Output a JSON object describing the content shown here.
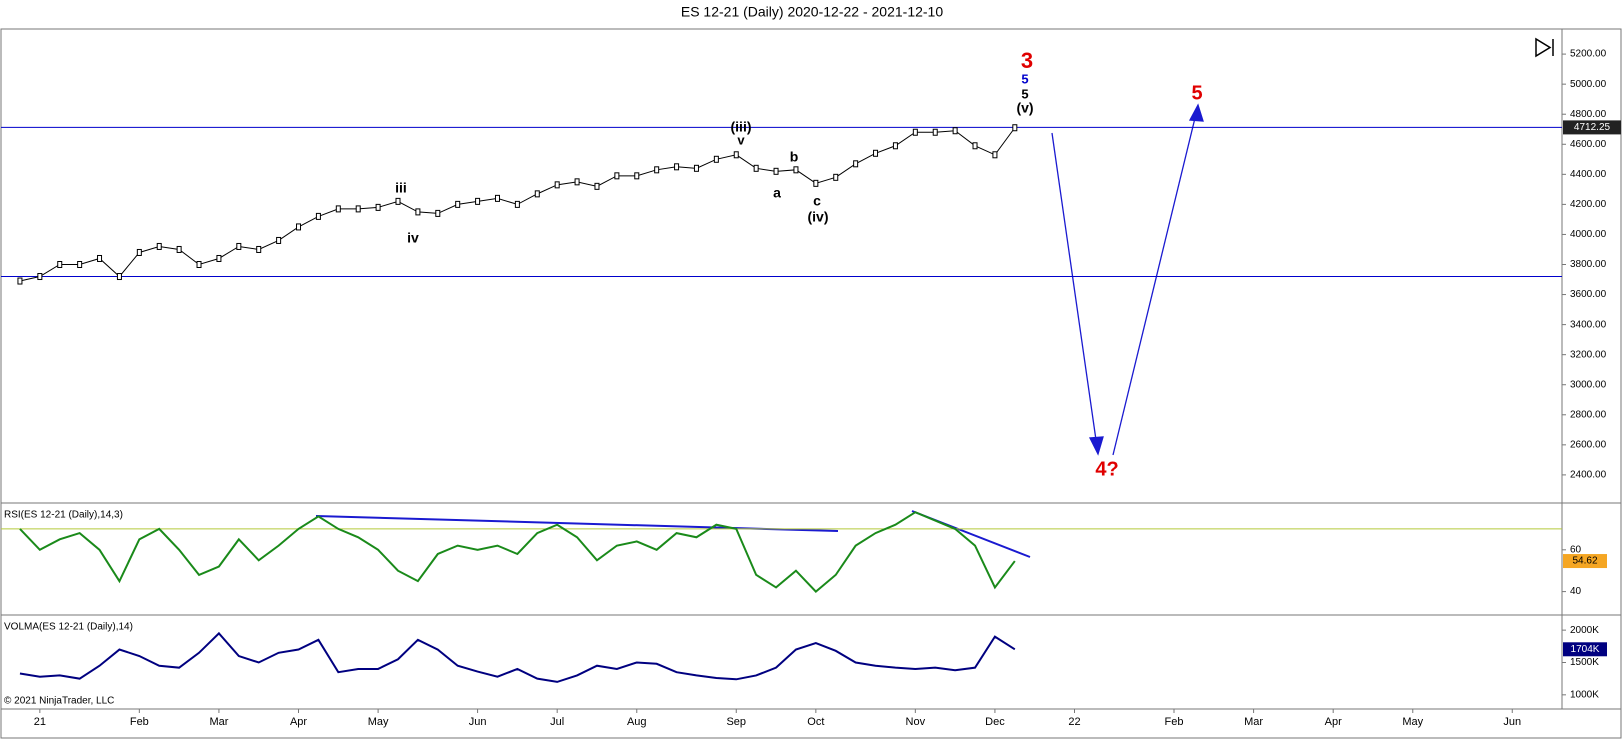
{
  "chart_data": [
    {
      "type": "line",
      "title": "ES 12-21 (Daily)  2020-12-22 - 2021-12-10",
      "categories": [
        null,
        "21",
        null,
        null,
        null,
        null,
        "Feb",
        null,
        null,
        null,
        "Mar",
        null,
        null,
        null,
        "Apr",
        null,
        null,
        null,
        "May",
        null,
        null,
        null,
        null,
        "Jun",
        null,
        null,
        null,
        "Jul",
        null,
        null,
        null,
        "Aug",
        null,
        null,
        null,
        null,
        "Sep",
        null,
        null,
        null,
        "Oct",
        null,
        null,
        null,
        null,
        "Nov",
        null,
        null,
        null,
        "Dec",
        null,
        null,
        null,
        "22",
        null,
        null,
        null,
        null,
        "Feb",
        null,
        null,
        null,
        "Mar",
        null,
        null,
        null,
        "Apr",
        null,
        null,
        null,
        "May",
        null,
        null,
        null,
        null,
        "Jun",
        null,
        null
      ],
      "series": [
        {
          "name": "ES 12-21",
          "color": "#000000",
          "values": [
            3690,
            3720,
            3800,
            3800,
            3840,
            3720,
            3880,
            3920,
            3900,
            3800,
            3840,
            3920,
            3900,
            3960,
            4050,
            4120,
            4170,
            4170,
            4180,
            4220,
            4150,
            4140,
            4200,
            4220,
            4240,
            4200,
            4270,
            4330,
            4350,
            4320,
            4390,
            4390,
            4430,
            4450,
            4440,
            4500,
            4530,
            4440,
            4420,
            4430,
            4340,
            4380,
            4470,
            4540,
            4590,
            4680,
            4680,
            4690,
            4590,
            4530,
            4710,
            null,
            null,
            null,
            null,
            null,
            null,
            null,
            null,
            null,
            null,
            null,
            null,
            null,
            null,
            null,
            null,
            null,
            null,
            null,
            null,
            null,
            null,
            null,
            null,
            null,
            null,
            null
          ]
        }
      ],
      "ylim": [
        2213,
        5367
      ],
      "yticks": [
        {
          "value": 2400,
          "label": "2400.00"
        },
        {
          "value": 2600,
          "label": "2600.00"
        },
        {
          "value": 2800,
          "label": "2800.00"
        },
        {
          "value": 3000,
          "label": "3000.00"
        },
        {
          "value": 3200,
          "label": "3200.00"
        },
        {
          "value": 3400,
          "label": "3400.00"
        },
        {
          "value": 3600,
          "label": "3600.00"
        },
        {
          "value": 3800,
          "label": "3800.00"
        },
        {
          "value": 4000,
          "label": "4000.00"
        },
        {
          "value": 4200,
          "label": "4200.00"
        },
        {
          "value": 4400,
          "label": "4400.00"
        },
        {
          "value": 4600,
          "label": "4600.00"
        },
        {
          "value": 4800,
          "label": "4800.00"
        },
        {
          "value": 5000,
          "label": "5000.00"
        },
        {
          "value": 5200,
          "label": "5200.00"
        }
      ],
      "hlines": [
        4712.25,
        3720
      ],
      "hline_color": "#0000cc",
      "annotations": [
        {
          "text": "3",
          "color": "#e00000"
        },
        {
          "text": "5",
          "color": "#0000cc"
        },
        {
          "text": "5",
          "color": "#000000"
        },
        {
          "text": "(v)",
          "color": "#000000"
        },
        {
          "text": "(iii)",
          "color": "#000000"
        },
        {
          "text": "v",
          "color": "#000000"
        },
        {
          "text": "b",
          "color": "#000000"
        },
        {
          "text": "a",
          "color": "#000000"
        },
        {
          "text": "c",
          "color": "#000000"
        },
        {
          "text": "(iv)",
          "color": "#000000"
        },
        {
          "text": "iii",
          "color": "#000000"
        },
        {
          "text": "iv",
          "color": "#000000"
        },
        {
          "text": "4?",
          "color": "#e00000"
        },
        {
          "text": "5",
          "color": "#e00000"
        }
      ]
    },
    {
      "type": "line",
      "title": "RSI(ES 12-21 (Daily),14,3)",
      "series": [
        {
          "name": "RSI",
          "color": "#1a8a1a",
          "values": [
            70,
            60,
            65,
            68,
            60,
            45,
            65,
            70,
            60,
            48,
            52,
            65,
            55,
            62,
            70,
            76,
            70,
            66,
            60,
            50,
            45,
            58,
            62,
            60,
            62,
            58,
            68,
            72,
            66,
            55,
            62,
            64,
            60,
            68,
            66,
            72,
            70,
            48,
            42,
            50,
            40,
            48,
            62,
            68,
            72,
            78,
            74,
            70,
            62,
            42,
            54.62
          ]
        }
      ],
      "ylim": [
        28.8,
        82.4
      ],
      "yticks": [
        40,
        60
      ],
      "level": 70,
      "level_color": "#b5c93a",
      "last_value": 54.62,
      "badge_color": "#f5a623"
    },
    {
      "type": "line",
      "title": "VOLMA(ES 12-21 (Daily),14)",
      "series": [
        {
          "name": "VOLMA",
          "color": "#000080",
          "values": [
            1330,
            1280,
            1300,
            1250,
            1450,
            1700,
            1600,
            1450,
            1420,
            1650,
            1950,
            1600,
            1500,
            1650,
            1700,
            1850,
            1350,
            1400,
            1400,
            1550,
            1850,
            1700,
            1450,
            1360,
            1280,
            1400,
            1250,
            1200,
            1300,
            1450,
            1400,
            1500,
            1480,
            1350,
            1300,
            1260,
            1240,
            1300,
            1420,
            1700,
            1800,
            1680,
            1500,
            1450,
            1420,
            1400,
            1420,
            1380,
            1420,
            1900,
            1704
          ]
        }
      ],
      "ylim": [
        781,
        2234
      ],
      "yticks": [
        {
          "value": 1000,
          "label": "1000K"
        },
        {
          "value": 1500,
          "label": "1500K"
        },
        {
          "value": 2000,
          "label": "2000K"
        }
      ],
      "last_value": {
        "value": 1704,
        "label": "1704K"
      },
      "badge_color": "#000080"
    }
  ],
  "copyright": "© 2021 NinjaTrader, LLC"
}
